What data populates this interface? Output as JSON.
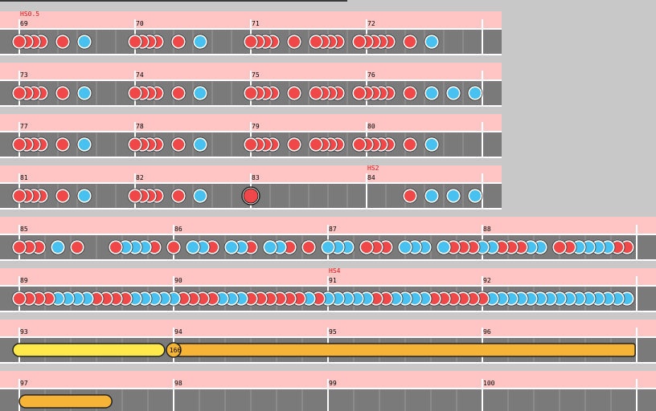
{
  "colors": {
    "background": "#c8c8c8",
    "header_band": "#ffc4c4",
    "lane": "#7a7a7a",
    "lane_border": "#ffffff",
    "beat_line": "#9a9a9a",
    "measure_line": "#ffffff",
    "don": "#f04848",
    "ka": "#48c0f0",
    "drumroll": "#ffe84a",
    "balloon": "#f6b436",
    "label_text": "#000000",
    "hs_text": "#d81818"
  },
  "scroll_markers": [
    {
      "row": 0,
      "measure": 69,
      "label": "HS0.5"
    },
    {
      "row": 3,
      "measure": 84,
      "label": "HS2"
    },
    {
      "row": 5,
      "measure": 91,
      "label": "HS4"
    }
  ],
  "balloon": {
    "hits": "166"
  },
  "rows": [
    {
      "measures": [
        {
          "num": "69",
          "notes": [
            [
              0,
              "D"
            ],
            [
              0.0625,
              "D"
            ],
            [
              0.125,
              "D"
            ],
            [
              0.1875,
              "D"
            ],
            [
              0.375,
              "D"
            ],
            [
              0.5625,
              "K"
            ]
          ]
        },
        {
          "num": "70",
          "notes": [
            [
              0,
              "D"
            ],
            [
              0.0625,
              "D"
            ],
            [
              0.125,
              "D"
            ],
            [
              0.1875,
              "D"
            ],
            [
              0.375,
              "D"
            ],
            [
              0.5625,
              "K"
            ]
          ]
        },
        {
          "num": "71",
          "notes": [
            [
              0,
              "D"
            ],
            [
              0.0625,
              "D"
            ],
            [
              0.125,
              "D"
            ],
            [
              0.1875,
              "D"
            ],
            [
              0.375,
              "D"
            ],
            [
              0.5625,
              "D"
            ],
            [
              0.625,
              "D"
            ],
            [
              0.6875,
              "D"
            ],
            [
              0.75,
              "D"
            ],
            [
              0.9375,
              "D"
            ]
          ]
        },
        {
          "num": "72",
          "notes": [
            [
              0,
              "D"
            ],
            [
              0.0625,
              "D"
            ],
            [
              0.125,
              "D"
            ],
            [
              0.1875,
              "D"
            ],
            [
              0.375,
              "D"
            ],
            [
              0.5625,
              "K"
            ]
          ]
        }
      ]
    },
    {
      "measures": [
        {
          "num": "73",
          "notes": [
            [
              0,
              "D"
            ],
            [
              0.0625,
              "D"
            ],
            [
              0.125,
              "D"
            ],
            [
              0.1875,
              "D"
            ],
            [
              0.375,
              "D"
            ],
            [
              0.5625,
              "K"
            ]
          ]
        },
        {
          "num": "74",
          "notes": [
            [
              0,
              "D"
            ],
            [
              0.0625,
              "D"
            ],
            [
              0.125,
              "D"
            ],
            [
              0.1875,
              "D"
            ],
            [
              0.375,
              "D"
            ],
            [
              0.5625,
              "K"
            ]
          ]
        },
        {
          "num": "75",
          "notes": [
            [
              0,
              "D"
            ],
            [
              0.0625,
              "D"
            ],
            [
              0.125,
              "D"
            ],
            [
              0.1875,
              "D"
            ],
            [
              0.375,
              "D"
            ],
            [
              0.5625,
              "D"
            ],
            [
              0.625,
              "D"
            ],
            [
              0.6875,
              "D"
            ],
            [
              0.75,
              "D"
            ],
            [
              0.9375,
              "D"
            ]
          ]
        },
        {
          "num": "76",
          "notes": [
            [
              0,
              "D"
            ],
            [
              0.0625,
              "D"
            ],
            [
              0.125,
              "D"
            ],
            [
              0.1875,
              "D"
            ],
            [
              0.375,
              "D"
            ],
            [
              0.5625,
              "K"
            ],
            [
              0.75,
              "K"
            ],
            [
              0.9375,
              "K"
            ]
          ]
        }
      ]
    },
    {
      "measures": [
        {
          "num": "77",
          "notes": [
            [
              0,
              "D"
            ],
            [
              0.0625,
              "D"
            ],
            [
              0.125,
              "D"
            ],
            [
              0.1875,
              "D"
            ],
            [
              0.375,
              "D"
            ],
            [
              0.5625,
              "K"
            ]
          ]
        },
        {
          "num": "78",
          "notes": [
            [
              0,
              "D"
            ],
            [
              0.0625,
              "D"
            ],
            [
              0.125,
              "D"
            ],
            [
              0.1875,
              "D"
            ],
            [
              0.375,
              "D"
            ],
            [
              0.5625,
              "K"
            ]
          ]
        },
        {
          "num": "79",
          "notes": [
            [
              0,
              "D"
            ],
            [
              0.0625,
              "D"
            ],
            [
              0.125,
              "D"
            ],
            [
              0.1875,
              "D"
            ],
            [
              0.375,
              "D"
            ],
            [
              0.5625,
              "D"
            ],
            [
              0.625,
              "D"
            ],
            [
              0.6875,
              "D"
            ],
            [
              0.75,
              "D"
            ],
            [
              0.9375,
              "D"
            ]
          ]
        },
        {
          "num": "80",
          "notes": [
            [
              0,
              "D"
            ],
            [
              0.0625,
              "D"
            ],
            [
              0.125,
              "D"
            ],
            [
              0.1875,
              "D"
            ],
            [
              0.375,
              "D"
            ],
            [
              0.5625,
              "K"
            ]
          ]
        }
      ]
    },
    {
      "measures": [
        {
          "num": "81",
          "notes": [
            [
              0,
              "D"
            ],
            [
              0.0625,
              "D"
            ],
            [
              0.125,
              "D"
            ],
            [
              0.1875,
              "D"
            ],
            [
              0.375,
              "D"
            ],
            [
              0.5625,
              "K"
            ]
          ]
        },
        {
          "num": "82",
          "notes": [
            [
              0,
              "D"
            ],
            [
              0.0625,
              "D"
            ],
            [
              0.125,
              "D"
            ],
            [
              0.1875,
              "D"
            ],
            [
              0.375,
              "D"
            ],
            [
              0.5625,
              "K"
            ]
          ]
        },
        {
          "num": "83",
          "notes": [
            [
              0,
              "BD"
            ]
          ]
        },
        {
          "num": "84",
          "notes": [
            [
              0.375,
              "D"
            ],
            [
              0.5625,
              "K"
            ],
            [
              0.75,
              "K"
            ],
            [
              0.9375,
              "K"
            ]
          ]
        }
      ]
    },
    {
      "measures": [
        {
          "num": "85",
          "notes": [
            [
              0,
              "D"
            ],
            [
              0.0625,
              "D"
            ],
            [
              0.125,
              "D"
            ],
            [
              0.25,
              "K"
            ],
            [
              0.375,
              "D"
            ],
            [
              0.625,
              "D"
            ],
            [
              0.6875,
              "K"
            ],
            [
              0.75,
              "K"
            ],
            [
              0.8125,
              "K"
            ],
            [
              0.875,
              "D"
            ]
          ]
        },
        {
          "num": "86",
          "notes": [
            [
              0,
              "D"
            ],
            [
              0.125,
              "K"
            ],
            [
              0.1875,
              "K"
            ],
            [
              0.25,
              "D"
            ],
            [
              0.375,
              "K"
            ],
            [
              0.4375,
              "K"
            ],
            [
              0.5,
              "D"
            ],
            [
              0.625,
              "K"
            ],
            [
              0.6875,
              "K"
            ],
            [
              0.75,
              "D"
            ],
            [
              0.875,
              "D"
            ]
          ]
        },
        {
          "num": "87",
          "notes": [
            [
              0,
              "K"
            ],
            [
              0.0625,
              "K"
            ],
            [
              0.125,
              "K"
            ],
            [
              0.25,
              "D"
            ],
            [
              0.3125,
              "D"
            ],
            [
              0.375,
              "D"
            ],
            [
              0.5,
              "K"
            ],
            [
              0.5625,
              "K"
            ],
            [
              0.625,
              "K"
            ],
            [
              0.75,
              "K"
            ],
            [
              0.8125,
              "D"
            ],
            [
              0.875,
              "D"
            ],
            [
              0.9375,
              "D"
            ]
          ]
        },
        {
          "num": "88",
          "notes": [
            [
              0,
              "K"
            ],
            [
              0.0625,
              "K"
            ],
            [
              0.125,
              "D"
            ],
            [
              0.1875,
              "D"
            ],
            [
              0.25,
              "D"
            ],
            [
              0.3125,
              "K"
            ],
            [
              0.375,
              "K"
            ],
            [
              0.5,
              "D"
            ],
            [
              0.5625,
              "D"
            ],
            [
              0.625,
              "K"
            ],
            [
              0.6875,
              "K"
            ],
            [
              0.75,
              "K"
            ],
            [
              0.8125,
              "K"
            ],
            [
              0.875,
              "D"
            ],
            [
              0.9375,
              "D"
            ]
          ]
        }
      ]
    },
    {
      "measures": [
        {
          "num": "89",
          "notes": [
            [
              0,
              "D"
            ],
            [
              0.0625,
              "D"
            ],
            [
              0.125,
              "D"
            ],
            [
              0.1875,
              "D"
            ],
            [
              0.25,
              "K"
            ],
            [
              0.3125,
              "K"
            ],
            [
              0.375,
              "K"
            ],
            [
              0.4375,
              "K"
            ],
            [
              0.5,
              "D"
            ],
            [
              0.5625,
              "D"
            ],
            [
              0.625,
              "D"
            ],
            [
              0.6875,
              "D"
            ],
            [
              0.75,
              "K"
            ],
            [
              0.8125,
              "K"
            ],
            [
              0.875,
              "K"
            ],
            [
              0.9375,
              "K"
            ]
          ]
        },
        {
          "num": "90",
          "notes": [
            [
              0,
              "K"
            ],
            [
              0.0625,
              "D"
            ],
            [
              0.125,
              "D"
            ],
            [
              0.1875,
              "D"
            ],
            [
              0.25,
              "D"
            ],
            [
              0.3125,
              "K"
            ],
            [
              0.375,
              "K"
            ],
            [
              0.4375,
              "K"
            ],
            [
              0.5,
              "D"
            ],
            [
              0.5625,
              "D"
            ],
            [
              0.625,
              "D"
            ],
            [
              0.6875,
              "D"
            ],
            [
              0.75,
              "D"
            ],
            [
              0.8125,
              "D"
            ],
            [
              0.875,
              "K"
            ],
            [
              0.9375,
              "D"
            ]
          ]
        },
        {
          "num": "91",
          "notes": [
            [
              0,
              "K"
            ],
            [
              0.0625,
              "K"
            ],
            [
              0.125,
              "K"
            ],
            [
              0.1875,
              "K"
            ],
            [
              0.25,
              "K"
            ],
            [
              0.3125,
              "D"
            ],
            [
              0.375,
              "D"
            ],
            [
              0.4375,
              "K"
            ],
            [
              0.5,
              "K"
            ],
            [
              0.5625,
              "K"
            ],
            [
              0.625,
              "K"
            ],
            [
              0.6875,
              "D"
            ],
            [
              0.75,
              "D"
            ],
            [
              0.8125,
              "D"
            ],
            [
              0.875,
              "D"
            ],
            [
              0.9375,
              "D"
            ]
          ]
        },
        {
          "num": "92",
          "notes": [
            [
              0,
              "D"
            ],
            [
              0.0625,
              "K"
            ],
            [
              0.125,
              "K"
            ],
            [
              0.1875,
              "K"
            ],
            [
              0.25,
              "K"
            ],
            [
              0.3125,
              "K"
            ],
            [
              0.375,
              "K"
            ],
            [
              0.4375,
              "K"
            ],
            [
              0.5,
              "K"
            ],
            [
              0.5625,
              "K"
            ],
            [
              0.625,
              "K"
            ],
            [
              0.6875,
              "K"
            ],
            [
              0.75,
              "K"
            ],
            [
              0.8125,
              "K"
            ],
            [
              0.875,
              "K"
            ],
            [
              0.9375,
              "K"
            ]
          ]
        }
      ]
    },
    {
      "measures": [
        {
          "num": "93",
          "notes": []
        },
        {
          "num": "94",
          "notes": []
        },
        {
          "num": "95",
          "notes": []
        },
        {
          "num": "96",
          "notes": []
        }
      ],
      "drumroll": {
        "start_measure": 0,
        "start_beat": 0,
        "end_measure": 0,
        "end_beat": 0.9
      },
      "balloon_roll": {
        "start_measure": 1,
        "start_beat": 0,
        "end_measure": 3,
        "end_beat": 0.99
      }
    },
    {
      "measures": [
        {
          "num": "97",
          "notes": []
        },
        {
          "num": "98",
          "notes": []
        },
        {
          "num": "99",
          "notes": []
        },
        {
          "num": "100",
          "notes": []
        }
      ],
      "balloon_tail": {
        "start_measure": 0,
        "start_beat": 0,
        "end_measure": 0,
        "end_beat": 0.6
      }
    }
  ]
}
